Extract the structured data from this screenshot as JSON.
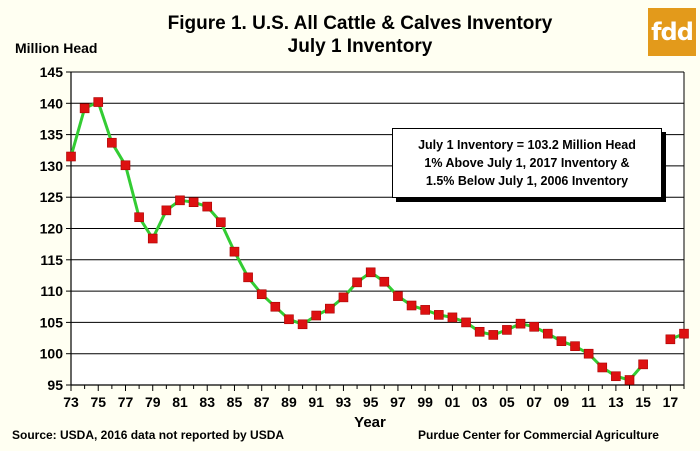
{
  "logo": {
    "text": "fdd"
  },
  "footer": {
    "source": "Source:  USDA, 2016 data not reported by USDA",
    "credit": "Purdue Center for Commercial Agriculture"
  },
  "colors": {
    "line": "#33cc33",
    "marker": "#dd1111",
    "background": "#fffff2"
  },
  "chart_data": {
    "type": "line",
    "title": "Figure 1. U.S. All Cattle & Calves Inventory",
    "subtitle": "July 1 Inventory",
    "ylabel": "Million Head",
    "xlabel": "Year",
    "ylim": [
      95,
      145
    ],
    "yticks": [
      95,
      100,
      105,
      110,
      115,
      120,
      125,
      130,
      135,
      140,
      145
    ],
    "xticks": [
      "73",
      "75",
      "77",
      "79",
      "81",
      "83",
      "85",
      "87",
      "89",
      "91",
      "93",
      "95",
      "97",
      "99",
      "01",
      "03",
      "05",
      "07",
      "09",
      "11",
      "13",
      "15",
      "17"
    ],
    "grid": true,
    "annotation": [
      "July 1 Inventory = 103.2 Million Head",
      "1% Above July 1, 2017 Inventory &",
      "1.5% Below July 1, 2006 Inventory"
    ],
    "series": [
      {
        "segments": [
          {
            "x": [
              1973,
              1974,
              1975,
              1976,
              1977,
              1978,
              1979,
              1980,
              1981,
              1982,
              1983,
              1984,
              1985,
              1986,
              1987,
              1988,
              1989,
              1990,
              1991,
              1992,
              1993,
              1994,
              1995,
              1996,
              1997,
              1998,
              1999,
              2000,
              2001,
              2002,
              2003,
              2004,
              2005,
              2006,
              2007,
              2008,
              2009,
              2010,
              2011,
              2012,
              2013,
              2014,
              2015
            ],
            "y": [
              131.5,
              139.2,
              140.2,
              133.7,
              130.1,
              121.8,
              118.4,
              122.9,
              124.5,
              124.2,
              123.5,
              121.0,
              116.3,
              112.2,
              109.5,
              107.5,
              105.5,
              104.7,
              106.1,
              107.2,
              109.0,
              111.4,
              113.0,
              111.5,
              109.2,
              107.7,
              107.0,
              106.2,
              105.8,
              105.0,
              103.5,
              103.0,
              103.8,
              104.8,
              104.3,
              103.2,
              102.0,
              101.2,
              100.0,
              97.8,
              96.4,
              95.8,
              98.3
            ]
          },
          {
            "x": [
              2017,
              2018
            ],
            "y": [
              102.3,
              103.2
            ]
          }
        ]
      }
    ]
  }
}
